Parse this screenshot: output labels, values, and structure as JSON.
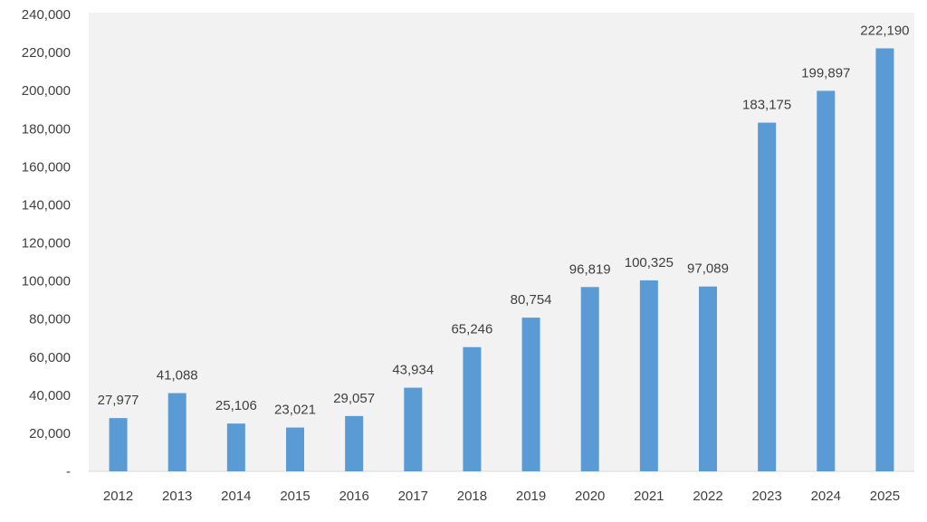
{
  "chart_data": {
    "type": "bar",
    "title": "",
    "xlabel": "",
    "ylabel": "",
    "categories": [
      "2012",
      "2013",
      "2014",
      "2015",
      "2016",
      "2017",
      "2018",
      "2019",
      "2020",
      "2021",
      "2022",
      "2023",
      "2024",
      "2025"
    ],
    "values": [
      27977,
      41088,
      25106,
      23021,
      29057,
      43934,
      65246,
      80754,
      96819,
      100325,
      97089,
      183175,
      199897,
      222190
    ],
    "data_labels": [
      "27,977",
      "41,088",
      "25,106",
      "23,021",
      "29,057",
      "43,934",
      "65,246",
      "80,754",
      "96,819",
      "100,325",
      "97,089",
      "183,175",
      "199,897",
      "222,190"
    ],
    "ylim": [
      0,
      240000
    ],
    "yticks": [
      0,
      20000,
      40000,
      60000,
      80000,
      100000,
      120000,
      140000,
      160000,
      180000,
      200000,
      220000,
      240000
    ],
    "ytick_labels": [
      "-",
      "20,000",
      "40,000",
      "60,000",
      "80,000",
      "100,000",
      "120,000",
      "140,000",
      "160,000",
      "180,000",
      "200,000",
      "220,000",
      "240,000"
    ],
    "grid": false,
    "legend": "none",
    "colors": {
      "bar": "#5b9bd5",
      "plot_background": "#f2f2f2",
      "text": "#404040",
      "axis": "#d9d9d9"
    }
  }
}
